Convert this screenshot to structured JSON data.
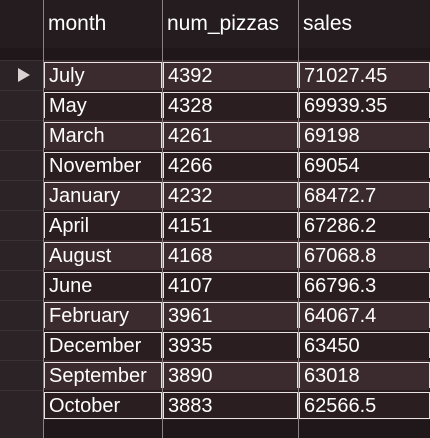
{
  "table": {
    "columns": [
      "month",
      "num_pizzas",
      "sales"
    ],
    "rows": [
      {
        "month": "July",
        "num_pizzas": "4392",
        "sales": "71027.45"
      },
      {
        "month": "May",
        "num_pizzas": "4328",
        "sales": "69939.35"
      },
      {
        "month": "March",
        "num_pizzas": "4261",
        "sales": "69198"
      },
      {
        "month": "November",
        "num_pizzas": "4266",
        "sales": "69054"
      },
      {
        "month": "January",
        "num_pizzas": "4232",
        "sales": "68472.7"
      },
      {
        "month": "April",
        "num_pizzas": "4151",
        "sales": "67286.2"
      },
      {
        "month": "August",
        "num_pizzas": "4168",
        "sales": "67068.8"
      },
      {
        "month": "June",
        "num_pizzas": "4107",
        "sales": "66796.3"
      },
      {
        "month": "February",
        "num_pizzas": "3961",
        "sales": "64067.4"
      },
      {
        "month": "December",
        "num_pizzas": "3935",
        "sales": "63450"
      },
      {
        "month": "September",
        "num_pizzas": "3890",
        "sales": "63018"
      },
      {
        "month": "October",
        "num_pizzas": "3883",
        "sales": "62566.5"
      }
    ],
    "current_row_indicator": "play-triangle-icon"
  }
}
